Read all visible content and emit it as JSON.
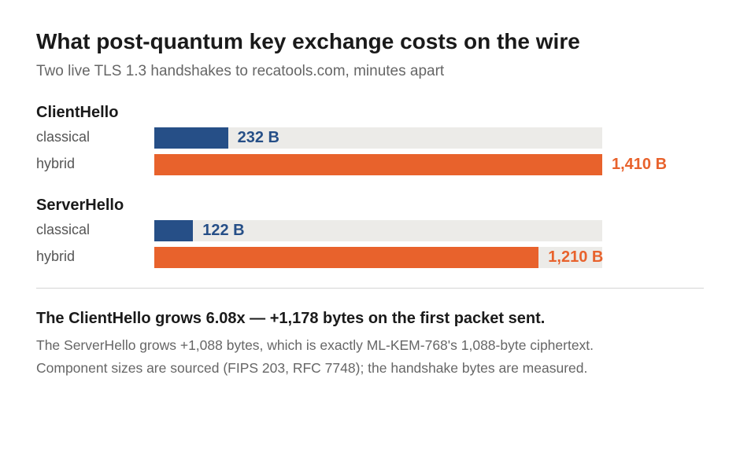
{
  "colors": {
    "classical": "#264f87",
    "hybrid": "#e8622c",
    "track": "#ecebe8"
  },
  "chart_data": {
    "type": "bar",
    "title": "What post-quantum key exchange costs on the wire",
    "subtitle": "Two live TLS 1.3 handshakes to recatools.com, minutes apart",
    "xlim": [
      0,
      1410
    ],
    "grid": false,
    "groups": [
      {
        "name": "ClientHello",
        "bars": [
          {
            "category": "classical",
            "value": 232,
            "label": "232 B",
            "color": "#264f87"
          },
          {
            "category": "hybrid",
            "value": 1410,
            "label": "1,410 B",
            "color": "#e8622c"
          }
        ]
      },
      {
        "name": "ServerHello",
        "bars": [
          {
            "category": "classical",
            "value": 122,
            "label": "122 B",
            "color": "#264f87"
          },
          {
            "category": "hybrid",
            "value": 1210,
            "label": "1,210 B",
            "color": "#e8622c"
          }
        ]
      }
    ]
  },
  "footer": {
    "headline": "The ClientHello grows 6.08x — +1,178 bytes on the first packet sent.",
    "note_1": "The ServerHello grows +1,088 bytes, which is exactly ML-KEM-768's 1,088-byte ciphertext.",
    "note_2": "Component sizes are sourced (FIPS 203, RFC 7748); the handshake bytes are measured."
  }
}
